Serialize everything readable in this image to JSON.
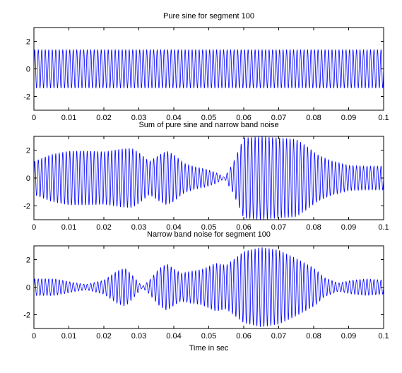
{
  "chart_data": [
    {
      "type": "line",
      "title": "Pure sine for segment 100",
      "xlabel": "",
      "ylabel": "",
      "xlim": [
        0,
        0.1
      ],
      "ylim": [
        -3,
        3
      ],
      "x_ticks": [
        0,
        0.01,
        0.02,
        0.03,
        0.04,
        0.05,
        0.06,
        0.07,
        0.08,
        0.09,
        0.1
      ],
      "x_tick_labels": [
        "0",
        "0.01",
        "0.02",
        "0.03",
        "0.04",
        "0.05",
        "0.06",
        "0.07",
        "0.08",
        "0.09",
        "0.1"
      ],
      "y_ticks": [
        -2,
        0,
        2
      ],
      "y_tick_labels": [
        "-2",
        "0",
        "2"
      ],
      "grid": false,
      "color": "#0000ff",
      "series": [
        {
          "signal": "pure-sine",
          "amplitude": 1.4,
          "cycles": 100
        }
      ]
    },
    {
      "type": "line",
      "title": "Sum of pure sine and narrow band noise",
      "xlabel": "",
      "ylabel": "",
      "xlim": [
        0,
        0.1
      ],
      "ylim": [
        -3,
        3
      ],
      "x_ticks": [
        0,
        0.01,
        0.02,
        0.03,
        0.04,
        0.05,
        0.06,
        0.07,
        0.08,
        0.09,
        0.1
      ],
      "x_tick_labels": [
        "0",
        "0.01",
        "0.02",
        "0.03",
        "0.04",
        "0.05",
        "0.06",
        "0.07",
        "0.08",
        "0.09",
        "0.1"
      ],
      "y_ticks": [
        -2,
        0,
        2
      ],
      "y_tick_labels": [
        "-2",
        "0",
        "2"
      ],
      "grid": false,
      "color": "#0000ff",
      "series": [
        {
          "signal": "sum",
          "envelope_x": [
            0,
            0.005,
            0.01,
            0.015,
            0.02,
            0.025,
            0.028,
            0.03,
            0.033,
            0.036,
            0.038,
            0.04,
            0.043,
            0.046,
            0.049,
            0.052,
            0.0545,
            0.057,
            0.06,
            0.065,
            0.07,
            0.075,
            0.078,
            0.081,
            0.085,
            0.09,
            0.095,
            0.1
          ],
          "envelope_y": [
            1.2,
            1.7,
            1.95,
            1.95,
            1.9,
            2.1,
            2.15,
            1.85,
            1.2,
            1.7,
            1.95,
            1.7,
            1.05,
            0.8,
            0.65,
            0.4,
            0.05,
            1.1,
            2.9,
            3.0,
            2.9,
            2.8,
            2.3,
            1.7,
            1.25,
            0.9,
            0.85,
            0.85
          ],
          "cycles": 100
        }
      ]
    },
    {
      "type": "line",
      "title": "Narrow band noise for segment 100",
      "xlabel": "Time in sec",
      "ylabel": "",
      "xlim": [
        0,
        0.1
      ],
      "ylim": [
        -3,
        3
      ],
      "x_ticks": [
        0,
        0.01,
        0.02,
        0.03,
        0.04,
        0.05,
        0.06,
        0.07,
        0.08,
        0.09,
        0.1
      ],
      "x_tick_labels": [
        "0",
        "0.01",
        "0.02",
        "0.03",
        "0.04",
        "0.05",
        "0.06",
        "0.07",
        "0.08",
        "0.09",
        "0.1"
      ],
      "y_ticks": [
        -2,
        0,
        2
      ],
      "y_tick_labels": [
        "-2",
        "0",
        "2"
      ],
      "grid": false,
      "color": "#0000ff",
      "series": [
        {
          "signal": "narrow-band-noise",
          "envelope_x": [
            0,
            0.006,
            0.012,
            0.015,
            0.02,
            0.024,
            0.026,
            0.028,
            0.031,
            0.033,
            0.036,
            0.038,
            0.042,
            0.048,
            0.052,
            0.055,
            0.06,
            0.065,
            0.07,
            0.075,
            0.08,
            0.083,
            0.087,
            0.091,
            0.095,
            0.1
          ],
          "envelope_y": [
            0.6,
            0.6,
            0.3,
            0.2,
            0.5,
            1.2,
            1.4,
            0.9,
            0.05,
            0.5,
            1.4,
            1.7,
            1.0,
            1.3,
            1.75,
            1.6,
            2.6,
            2.9,
            2.7,
            2.1,
            1.4,
            0.7,
            0.3,
            0.5,
            0.6,
            0.5
          ],
          "cycles": 100
        }
      ]
    }
  ]
}
